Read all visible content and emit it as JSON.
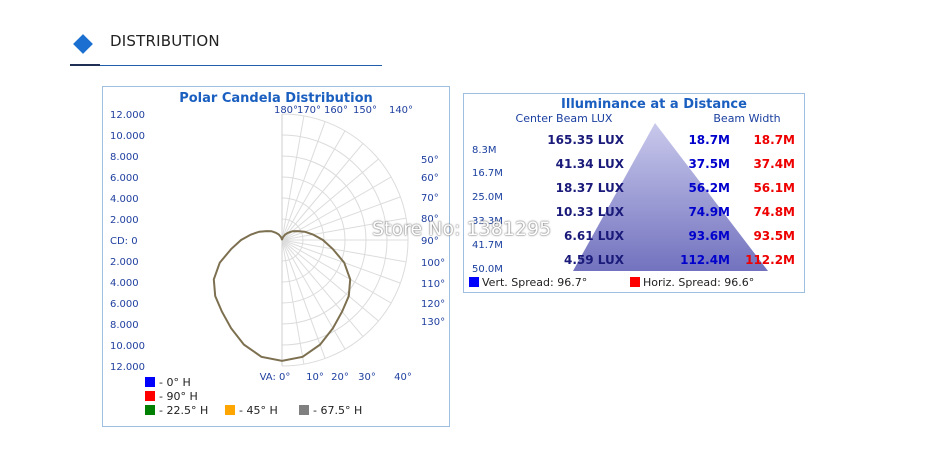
{
  "section": {
    "title": "DISTRIBUTION",
    "icon": "diamond-icon"
  },
  "watermark": "Store No: 1381295",
  "chart_data": [
    {
      "type": "polar",
      "title": "Polar Candela Distribution",
      "cd_axis": {
        "labels": [
          "12.000",
          "10.000",
          "8.000",
          "6.000",
          "4.000",
          "2.000",
          "CD: 0",
          "2.000",
          "4.000",
          "6.000",
          "8.000",
          "10.000",
          "12.000"
        ],
        "range": [
          -12000,
          12000
        ],
        "unit": "cd"
      },
      "top_angle_labels": [
        "180°",
        "170°",
        "160°",
        "150°",
        "140°"
      ],
      "right_angle_labels": [
        "130°",
        "120°",
        "110°",
        "100°",
        "90°",
        "80°",
        "70°",
        "60°",
        "50°"
      ],
      "bottom_angle_labels": [
        "VA: 0°",
        "10°",
        "20°",
        "30°",
        "40°"
      ],
      "legend": [
        {
          "label": "- 0° H",
          "color": "#0000ff"
        },
        {
          "label": "- 90° H",
          "color": "#ff0000"
        },
        {
          "label": "- 22.5° H",
          "color": "#008000"
        },
        {
          "label": "- 45° H",
          "color": "#ffa500"
        },
        {
          "label": "- 67.5° H",
          "color": "#808080"
        }
      ],
      "curve": {
        "color": "#7d7050",
        "angles_deg": [
          0,
          10,
          20,
          30,
          40,
          50,
          60,
          70,
          80,
          90,
          100,
          110,
          120,
          130,
          140,
          150,
          160,
          170,
          180
        ],
        "candela": [
          11500,
          11300,
          10600,
          9700,
          8900,
          8300,
          7500,
          6300,
          4900,
          3900,
          3000,
          2300,
          1700,
          1300,
          900,
          600,
          300,
          100,
          0
        ]
      },
      "grid": true
    },
    {
      "type": "table",
      "title": "Illuminance at a Distance",
      "columns": [
        "Center Beam LUX",
        "Beam Width"
      ],
      "rows": [
        {
          "distance": "8.3M",
          "lux": "165.35 LUX",
          "vert": "18.7M",
          "horiz": "18.7M"
        },
        {
          "distance": "16.7M",
          "lux": "41.34 LUX",
          "vert": "37.5M",
          "horiz": "37.4M"
        },
        {
          "distance": "25.0M",
          "lux": "18.37 LUX",
          "vert": "56.2M",
          "horiz": "56.1M"
        },
        {
          "distance": "33.3M",
          "lux": "10.33 LUX",
          "vert": "74.9M",
          "horiz": "74.8M"
        },
        {
          "distance": "41.7M",
          "lux": "6.61 LUX",
          "vert": "93.6M",
          "horiz": "93.5M"
        },
        {
          "distance": "50.0M",
          "lux": "4.59 LUX",
          "vert": "112.4M",
          "horiz": "112.2M"
        }
      ],
      "legend": [
        {
          "label": "Vert. Spread: 96.7°",
          "color": "#0000ff"
        },
        {
          "label": "Horiz. Spread: 96.6°",
          "color": "#ff0000"
        }
      ],
      "colors": {
        "lux": "#1a1a7a",
        "vert": "#0000cc",
        "horiz": "#ee0000"
      }
    }
  ]
}
